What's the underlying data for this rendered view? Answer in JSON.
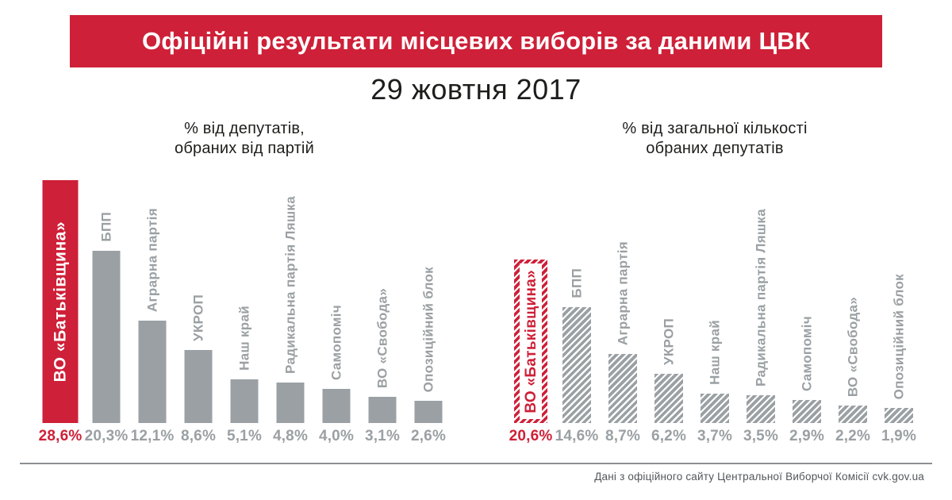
{
  "banner": {
    "title": "Офіційні результати місцевих виборів за даними ЦВК"
  },
  "subtitle": "29 жовтня 2017",
  "footer": {
    "source": "Дані з офіційного сайту Центральної Виборчої Комісії cvk.gov.ua"
  },
  "colors": {
    "accent": "#ce2038",
    "bar_gray": "#9aa0a3",
    "text_dark": "#1d1d1b",
    "footer_text": "#53575a",
    "footer_line": "#8b8f92"
  },
  "chart_data": [
    {
      "type": "bar",
      "title": "% від депутатів,\nобраних від партій",
      "categories": [
        "ВО «Батьківщина»",
        "БПП",
        "Аграрна партія",
        "УКРОП",
        "Наш край",
        "Радикальна партія Ляшка",
        "Самопоміч",
        "ВО «Свобода»",
        "Опозиційний блок"
      ],
      "values": [
        28.6,
        20.3,
        12.1,
        8.6,
        5.1,
        4.8,
        4.0,
        3.1,
        2.6
      ],
      "value_labels": [
        "28,6%",
        "20,3%",
        "12,1%",
        "8,6%",
        "5,1%",
        "4,8%",
        "4,0%",
        "3,1%",
        "2,6%"
      ],
      "highlight_index": 0,
      "bar_style": "solid",
      "highlight_label_position": "inside-bar",
      "xlabel": "",
      "ylabel": "",
      "grid": false,
      "legend": false
    },
    {
      "type": "bar",
      "title": "% від загальної кількості\nобраних депутатів",
      "categories": [
        "ВО «Батьківщина»",
        "БПП",
        "Аграрна партія",
        "УКРОП",
        "Наш край",
        "Радикальна партія Ляшка",
        "Самопоміч",
        "ВО «Свобода»",
        "Опозиційний блок"
      ],
      "values": [
        20.6,
        14.6,
        8.7,
        6.2,
        3.7,
        3.5,
        2.9,
        2.2,
        1.9
      ],
      "value_labels": [
        "20,6%",
        "14,6%",
        "8,7%",
        "6,2%",
        "3,7%",
        "3,5%",
        "2,9%",
        "2,2%",
        "1,9%"
      ],
      "highlight_index": 0,
      "bar_style": "hatched",
      "highlight_label_position": "inside-bar-on-white-strip",
      "xlabel": "",
      "ylabel": "",
      "grid": false,
      "legend": false
    }
  ]
}
